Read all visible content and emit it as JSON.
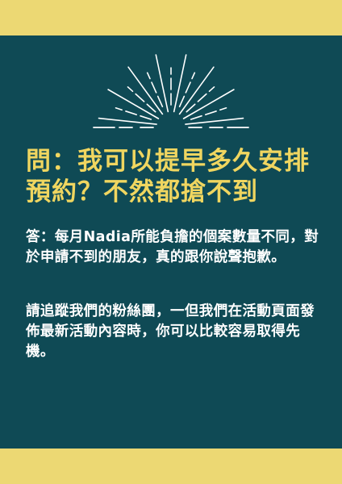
{
  "colors": {
    "background": "#0f4a55",
    "band": "#ecd873",
    "question": "#f0d660",
    "answer": "#ffffff",
    "rays": "#ffffff"
  },
  "icon": "sunburst-icon",
  "question": "問：我可以提早多久安排預約？不然都搶不到",
  "answer_paragraphs": [
    "答：每月Nadia所能負擔的個案數量不同，對於申請不到的朋友，真的跟你說聲抱歉。",
    "請追蹤我們的粉絲團，一但我們在活動頁面發佈最新活動內容時，你可以比較容易取得先機。"
  ]
}
